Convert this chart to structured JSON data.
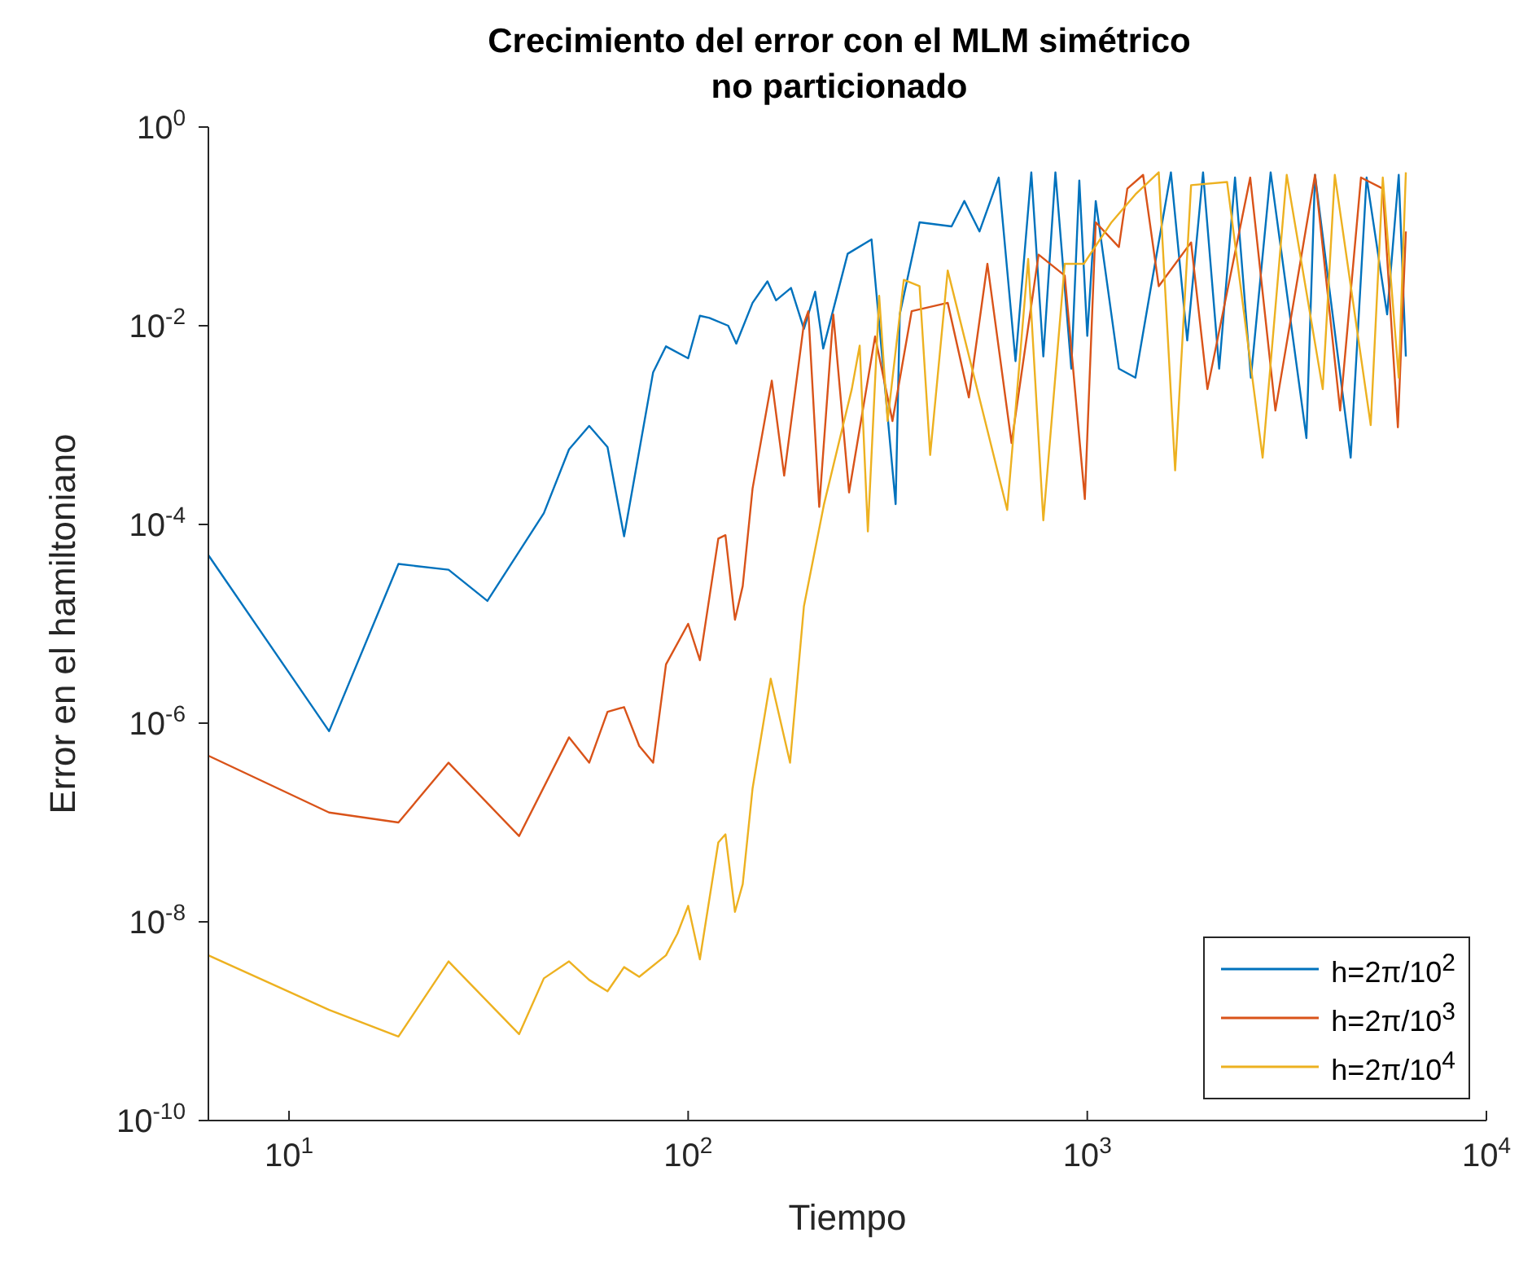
{
  "chart_data": {
    "type": "line",
    "title": "Crecimiento del error con el MLM simétrico\nno particionado",
    "xlabel": "Tiempo",
    "ylabel": "Error en el hamiltoniano",
    "log": "xy",
    "legend": "bottom right",
    "marker": "none",
    "line_style": "solid",
    "xlim": [
      6.28,
      10000
    ],
    "xticks": [
      {
        "value": 10,
        "label": "10$^{1}$"
      },
      {
        "value": 100,
        "label": "10$^{2}$"
      },
      {
        "value": 1000,
        "label": "10$^{3}$"
      },
      {
        "value": 10000,
        "label": "10$^{4}$"
      }
    ],
    "ylim": [
      1e-10,
      1
    ],
    "yticks": [
      {
        "value": 1e-10,
        "label": "10$^{-10}$"
      },
      {
        "value": 1e-08,
        "label": "10$^{-8}$"
      },
      {
        "value": 1e-06,
        "label": "10$^{-6}$"
      },
      {
        "value": 0.0001,
        "label": "10$^{-4}$"
      },
      {
        "value": 0.01,
        "label": "10$^{-2}$"
      },
      {
        "value": 1,
        "label": "10$^{0}$"
      }
    ],
    "series": [
      {
        "name": "h=2π/10$^{2}$",
        "color": "#0072bd",
        "x": [
          6.28,
          12.6,
          18.8,
          25.1,
          31.4,
          43.5,
          50.3,
          56.5,
          62.8,
          69.1,
          81.7,
          88,
          100,
          107,
          113,
          126,
          132,
          145,
          158,
          166,
          181,
          195,
          208,
          218,
          251,
          288,
          331,
          339,
          380,
          457,
          492,
          537,
          600,
          661,
          724,
          776,
          832,
          912,
          955,
          1000,
          1050,
          1200,
          1320,
          1445,
          1620,
          1780,
          1950,
          2140,
          2345,
          2570,
          2880,
          3540,
          3720,
          4570,
          5010,
          5640,
          6030,
          6283
        ],
        "values": [
          4.9e-05,
          8.3e-07,
          4e-05,
          3.5e-05,
          1.7e-05,
          0.00013,
          0.00057,
          0.00098,
          0.0006,
          7.6e-05,
          0.0034,
          0.0062,
          0.0047,
          0.0126,
          0.012,
          0.01,
          0.0066,
          0.017,
          0.028,
          0.018,
          0.024,
          0.0093,
          0.022,
          0.0059,
          0.053,
          0.074,
          0.00016,
          0.013,
          0.11,
          0.1,
          0.18,
          0.089,
          0.31,
          0.0044,
          0.35,
          0.0049,
          0.35,
          0.0037,
          0.29,
          0.0079,
          0.18,
          0.0037,
          0.003,
          0.025,
          0.35,
          0.0071,
          0.35,
          0.0037,
          0.31,
          0.003,
          0.35,
          0.00074,
          0.33,
          0.00047,
          0.31,
          0.013,
          0.33,
          0.0049
        ]
      },
      {
        "name": "h=2π/10$^{3}$",
        "color": "#d95319",
        "x": [
          6.28,
          12.6,
          18.8,
          25.1,
          37.7,
          50.3,
          56.5,
          62.8,
          69.1,
          75.4,
          81.7,
          88,
          100,
          107,
          119,
          124,
          131,
          137,
          145,
          162,
          174,
          195,
          200,
          213,
          231,
          253,
          294,
          325,
          363,
          447,
          505,
          562,
          646,
          755,
          878,
          986,
          1050,
          1200,
          1260,
          1380,
          1510,
          1820,
          2000,
          2560,
          2960,
          3720,
          4300,
          4850,
          5500,
          6000,
          6283
        ],
        "values": [
          4.7e-07,
          1.26e-07,
          1e-07,
          4e-07,
          7.3e-08,
          7.2e-07,
          4e-07,
          1.3e-06,
          1.45e-06,
          5.9e-07,
          4e-07,
          3.9e-06,
          1e-05,
          4.3e-06,
          7.2e-05,
          7.8e-05,
          1.1e-05,
          2.4e-05,
          0.00023,
          0.0028,
          0.00031,
          0.0105,
          0.014,
          0.00015,
          0.013,
          0.00021,
          0.0078,
          0.0011,
          0.014,
          0.017,
          0.0019,
          0.042,
          0.00066,
          0.052,
          0.032,
          0.00018,
          0.11,
          0.062,
          0.24,
          0.33,
          0.025,
          0.069,
          0.0023,
          0.31,
          0.0014,
          0.33,
          0.0014,
          0.31,
          0.24,
          0.00095,
          0.089
        ]
      },
      {
        "name": "h=2π/10$^{4}$",
        "color": "#edb120",
        "x": [
          6.28,
          12.6,
          18.8,
          25.1,
          37.7,
          43.5,
          50.3,
          56.5,
          62.8,
          69.1,
          75.4,
          88,
          94,
          100,
          107,
          119,
          124,
          131,
          137,
          145,
          161,
          180,
          195,
          219,
          257,
          269,
          282,
          301,
          316,
          347,
          380,
          404,
          447,
          630,
          711,
          776,
          878,
          980,
          1150,
          1320,
          1510,
          1660,
          1820,
          2240,
          2750,
          3160,
          3890,
          4170,
          5130,
          5500,
          6030,
          6283
        ],
        "values": [
          4.6e-09,
          1.3e-09,
          7e-10,
          4e-09,
          7.4e-10,
          2.7e-09,
          4e-09,
          2.6e-09,
          2e-09,
          3.5e-09,
          2.8e-09,
          4.6e-09,
          7.6e-09,
          1.45e-08,
          4.2e-09,
          6.3e-08,
          7.6e-08,
          1.26e-08,
          2.4e-08,
          2.2e-07,
          2.8e-06,
          4e-07,
          1.5e-05,
          0.00016,
          0.0023,
          0.0063,
          8.5e-05,
          0.02,
          0.0011,
          0.029,
          0.025,
          0.0005,
          0.036,
          0.00014,
          0.047,
          0.00011,
          0.042,
          0.042,
          0.11,
          0.21,
          0.35,
          0.00035,
          0.26,
          0.28,
          0.00047,
          0.33,
          0.0023,
          0.33,
          0.001,
          0.31,
          0.003,
          0.35
        ]
      }
    ]
  }
}
